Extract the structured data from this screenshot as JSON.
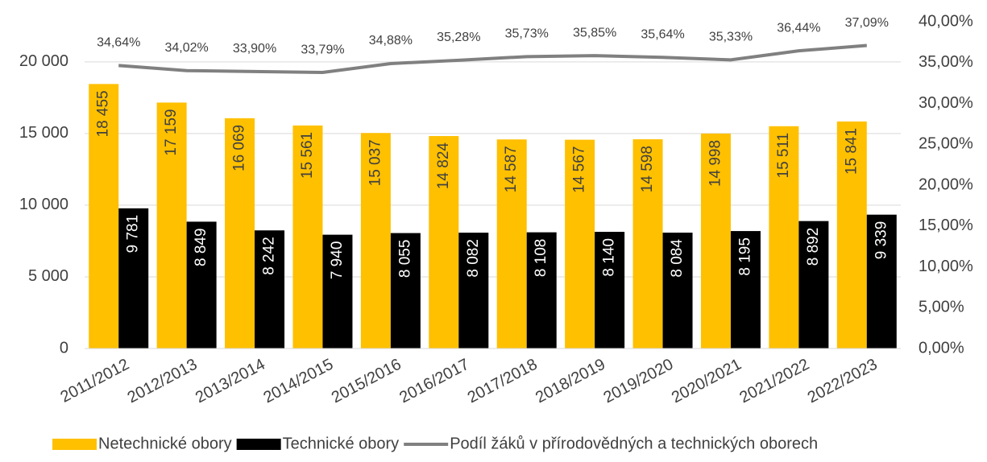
{
  "chart_data": {
    "type": "bar",
    "categories": [
      "2011/2012",
      "2012/2013",
      "2013/2014",
      "2014/2015",
      "2015/2016",
      "2016/2017",
      "2017/2018",
      "2018/2019",
      "2019/2020",
      "2020/2021",
      "2021/2022",
      "2022/2023"
    ],
    "series": [
      {
        "name": "Netechnické obory",
        "type": "bar",
        "color": "#ffc000",
        "values": [
          18455,
          17159,
          16069,
          15561,
          15037,
          14824,
          14587,
          14567,
          14598,
          14998,
          15511,
          15841
        ],
        "value_labels": [
          "18 455",
          "17 159",
          "16 069",
          "15 561",
          "15 037",
          "14 824",
          "14 587",
          "14 567",
          "14 598",
          "14 998",
          "15 511",
          "15 841"
        ]
      },
      {
        "name": "Technické obory",
        "type": "bar",
        "color": "#000000",
        "values": [
          9781,
          8849,
          8242,
          7940,
          8055,
          8082,
          8108,
          8140,
          8084,
          8195,
          8892,
          9339
        ],
        "value_labels": [
          "9 781",
          "8 849",
          "8 242",
          "7 940",
          "8 055",
          "8 082",
          "8 108",
          "8 140",
          "8 084",
          "8 195",
          "8 892",
          "9 339"
        ]
      },
      {
        "name": "Podíl žáků v přírodovědných a technických oborech",
        "type": "line",
        "axis": "y2",
        "color": "#808080",
        "values": [
          34.64,
          34.02,
          33.9,
          33.79,
          34.88,
          35.28,
          35.73,
          35.85,
          35.64,
          35.33,
          36.44,
          37.09
        ],
        "value_labels": [
          "34,64%",
          "34,02%",
          "33,90%",
          "33,79%",
          "34,88%",
          "35,28%",
          "35,73%",
          "35,85%",
          "35,64%",
          "35,33%",
          "36,44%",
          "37,09%"
        ]
      }
    ],
    "ylim": [
      0,
      22800
    ],
    "yticks": [
      0,
      {
        "value": 5000,
        "label": "5 000"
      },
      {
        "value": 10000,
        "label": "10 000"
      },
      {
        "value": 15000,
        "label": "15 000"
      },
      {
        "value": 20000,
        "label": "20 000"
      }
    ],
    "y2lim": [
      0,
      40
    ],
    "y2ticks": [
      {
        "value": 0,
        "label": "0,00%"
      },
      {
        "value": 5,
        "label": "5,00%"
      },
      {
        "value": 10,
        "label": "10,00%"
      },
      {
        "value": 15,
        "label": "15,00%"
      },
      {
        "value": 20,
        "label": "20,00%"
      },
      {
        "value": 25,
        "label": "25,00%"
      },
      {
        "value": 30,
        "label": "30,00%"
      },
      {
        "value": 35,
        "label": "35,00%"
      },
      {
        "value": 40,
        "label": "40,00%"
      }
    ],
    "grid": true,
    "legend": "bottom"
  }
}
